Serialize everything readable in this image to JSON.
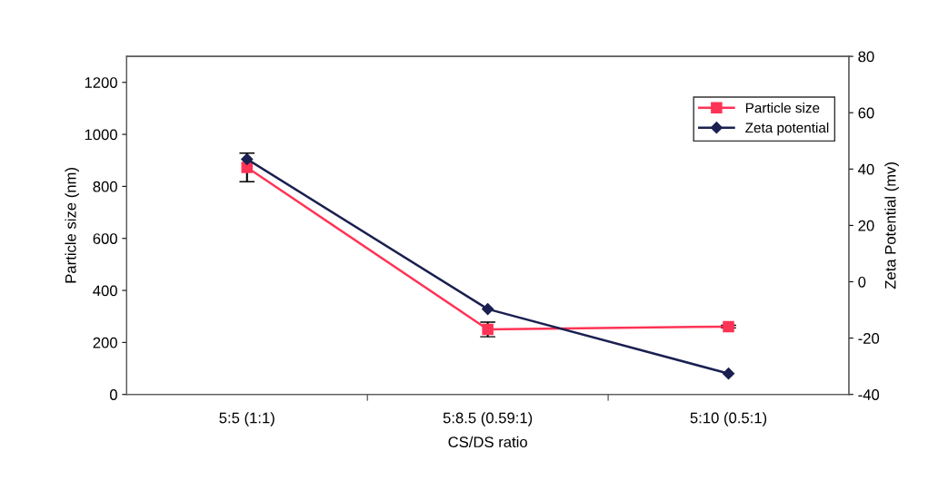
{
  "chart_data": {
    "type": "line",
    "xlabel": "CS/DS ratio",
    "ylabel": "Particle size (nm)",
    "y2label": "Zeta Potential (mv)",
    "categories": [
      "5:5 (1:1)",
      "5:8.5 (0.59:1)",
      "5:10 (0.5:1)"
    ],
    "series": [
      {
        "name": "Particle size",
        "color": "#ff3355",
        "values": [
          873,
          250,
          261
        ],
        "errors": [
          55,
          28,
          5
        ],
        "marker": "square"
      },
      {
        "name": "Zeta potential",
        "color": "#1a2050",
        "values": [
          43.5,
          -9.7,
          -32.6
        ],
        "axis": "y2",
        "marker": "diamond"
      }
    ],
    "ylim": [
      0,
      1300
    ],
    "yticks": [
      0,
      200,
      400,
      600,
      800,
      1000,
      1200
    ],
    "y2lim": [
      -40,
      80
    ],
    "y2ticks": [
      -40,
      -20,
      0,
      20,
      40,
      60,
      80
    ],
    "legend": "top right",
    "grid": false,
    "line_style": "solid"
  }
}
